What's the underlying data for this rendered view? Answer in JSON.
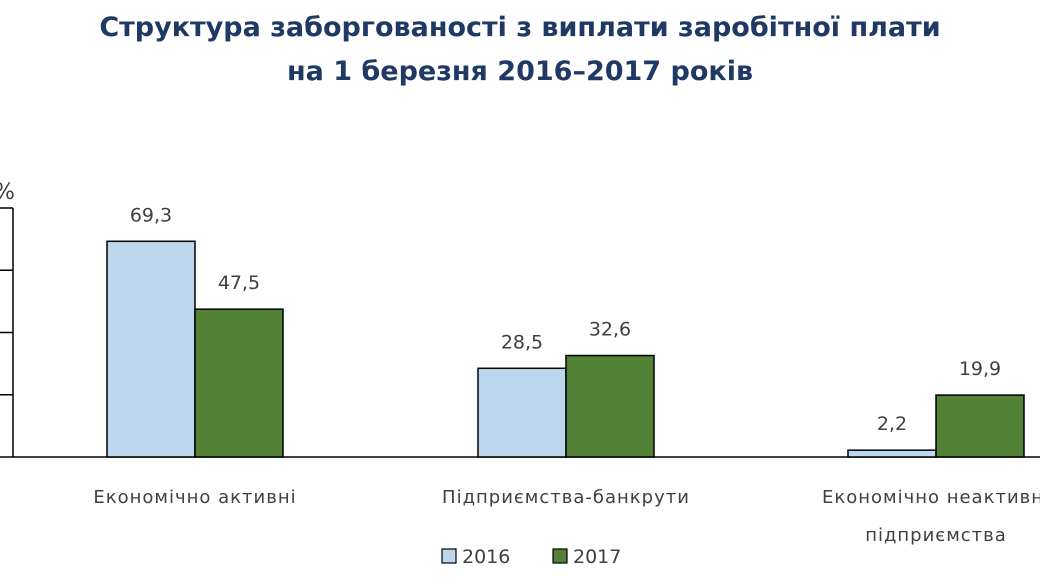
{
  "chart_data": {
    "type": "bar",
    "title_lines": [
      "Структура заборгованості з виплати заробітної плати",
      "на 1 березня 2016–2017 років"
    ],
    "ylabel": "%",
    "ylim": [
      0,
      80
    ],
    "ytick_step": 20,
    "categories": [
      [
        "Економічно активні"
      ],
      [
        "Підприємства-банкрути"
      ],
      [
        "Економічно неактивні",
        "підприємства"
      ]
    ],
    "series": [
      {
        "name": "2016",
        "values": [
          69.3,
          28.5,
          2.2
        ],
        "labels": [
          "69,3",
          "28,5",
          "2,2"
        ],
        "color": "#bdd7ee"
      },
      {
        "name": "2017",
        "values": [
          47.5,
          32.6,
          19.9
        ],
        "labels": [
          "47,5",
          "32,6",
          "19,9"
        ],
        "color": "#538135"
      }
    ],
    "legend_position": "bottom",
    "grid": false
  }
}
